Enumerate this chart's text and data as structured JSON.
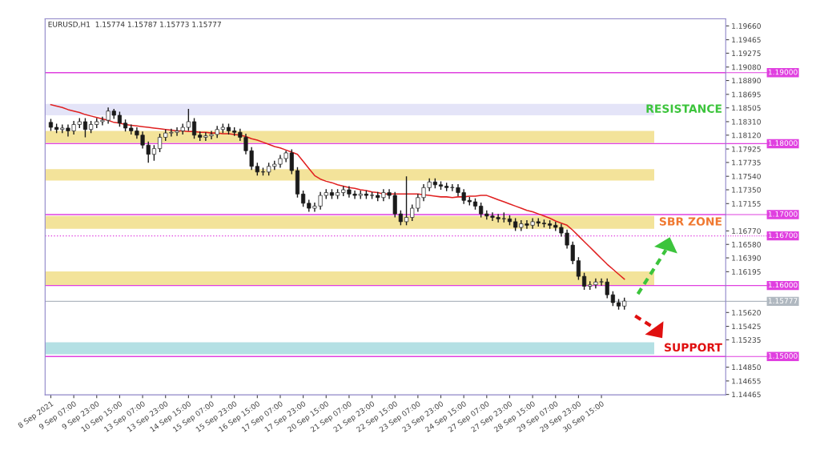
{
  "chart_data": {
    "type": "candlestick",
    "title": "EURUSD,H1  1.15774 1.15787 1.15773 1.15777",
    "categories": [
      "8 Sep 2021",
      null,
      null,
      null,
      "9 Sep 07:00",
      null,
      null,
      null,
      "9 Sep 23:00",
      null,
      null,
      null,
      "10 Sep 15:00",
      null,
      null,
      null,
      "13 Sep 07:00",
      null,
      null,
      null,
      "13 Sep 23:00",
      null,
      null,
      null,
      "14 Sep 15:00",
      null,
      null,
      null,
      "15 Sep 07:00",
      null,
      null,
      null,
      "15 Sep 23:00",
      null,
      null,
      null,
      "16 Sep 15:00",
      null,
      null,
      null,
      "17 Sep 07:00",
      null,
      null,
      null,
      "17 Sep 23:00",
      null,
      null,
      null,
      "20 Sep 15:00",
      null,
      null,
      null,
      "21 Sep 07:00",
      null,
      null,
      null,
      "21 Sep 23:00",
      null,
      null,
      null,
      "22 Sep 15:00",
      null,
      null,
      null,
      "23 Sep 07:00",
      null,
      null,
      null,
      "23 Sep 23:00",
      null,
      null,
      null,
      "24 Sep 15:00",
      null,
      null,
      null,
      "27 Sep 07:00",
      null,
      null,
      null,
      "27 Sep 23:00",
      null,
      null,
      null,
      "28 Sep 15:00",
      null,
      null,
      null,
      "29 Sep 07:00",
      null,
      null,
      null,
      "29 Sep 23:00",
      null,
      null,
      null,
      "30 Sep 15:00",
      null,
      null,
      null,
      null
    ],
    "ohlc": [
      [
        1.183,
        1.1835,
        1.1818,
        1.1823
      ],
      [
        1.1823,
        1.1828,
        1.1815,
        1.182
      ],
      [
        1.182,
        1.1827,
        1.1815,
        1.1822
      ],
      [
        1.1822,
        1.1827,
        1.181,
        1.1818
      ],
      [
        1.1818,
        1.1832,
        1.1813,
        1.1827
      ],
      [
        1.1827,
        1.1836,
        1.1822,
        1.1831
      ],
      [
        1.1831,
        1.1836,
        1.1809,
        1.182
      ],
      [
        1.182,
        1.1832,
        1.1815,
        1.1827
      ],
      [
        1.1827,
        1.1836,
        1.1822,
        1.1831
      ],
      [
        1.1831,
        1.1838,
        1.1826,
        1.1833
      ],
      [
        1.1833,
        1.1851,
        1.1828,
        1.1846
      ],
      [
        1.1846,
        1.1849,
        1.1835,
        1.184
      ],
      [
        1.184,
        1.1845,
        1.1824,
        1.1829
      ],
      [
        1.1829,
        1.1834,
        1.1817,
        1.1822
      ],
      [
        1.1822,
        1.1827,
        1.1813,
        1.1818
      ],
      [
        1.1818,
        1.1823,
        1.1807,
        1.1812
      ],
      [
        1.1812,
        1.1817,
        1.1793,
        1.1798
      ],
      [
        1.1798,
        1.1803,
        1.1773,
        1.1785
      ],
      [
        1.1785,
        1.1798,
        1.1776,
        1.1793
      ],
      [
        1.1793,
        1.1814,
        1.1788,
        1.1809
      ],
      [
        1.1809,
        1.182,
        1.1804,
        1.1815
      ],
      [
        1.1815,
        1.1821,
        1.181,
        1.1816
      ],
      [
        1.1816,
        1.1823,
        1.1811,
        1.1818
      ],
      [
        1.1818,
        1.1828,
        1.1813,
        1.1823
      ],
      [
        1.1823,
        1.1849,
        1.1818,
        1.1831
      ],
      [
        1.1831,
        1.1836,
        1.1807,
        1.1812
      ],
      [
        1.1812,
        1.1817,
        1.1804,
        1.1809
      ],
      [
        1.1809,
        1.1816,
        1.1804,
        1.1811
      ],
      [
        1.1811,
        1.1818,
        1.1806,
        1.1813
      ],
      [
        1.1813,
        1.1825,
        1.1808,
        1.182
      ],
      [
        1.182,
        1.1828,
        1.1815,
        1.1823
      ],
      [
        1.1823,
        1.1828,
        1.1813,
        1.1818
      ],
      [
        1.1818,
        1.1823,
        1.1811,
        1.1816
      ],
      [
        1.1816,
        1.1821,
        1.1804,
        1.1809
      ],
      [
        1.1809,
        1.1814,
        1.1785,
        1.179
      ],
      [
        1.179,
        1.1795,
        1.1763,
        1.1768
      ],
      [
        1.1768,
        1.1773,
        1.1755,
        1.176
      ],
      [
        1.176,
        1.1766,
        1.1755,
        1.176
      ],
      [
        1.176,
        1.1773,
        1.1755,
        1.1768
      ],
      [
        1.1768,
        1.1776,
        1.1763,
        1.1771
      ],
      [
        1.1771,
        1.1784,
        1.1766,
        1.1779
      ],
      [
        1.1779,
        1.179,
        1.1774,
        1.1787
      ],
      [
        1.1787,
        1.1792,
        1.1757,
        1.1762
      ],
      [
        1.1762,
        1.1767,
        1.1724,
        1.1729
      ],
      [
        1.1729,
        1.1734,
        1.1711,
        1.1716
      ],
      [
        1.1716,
        1.1721,
        1.1704,
        1.1709
      ],
      [
        1.1709,
        1.1717,
        1.1704,
        1.1712
      ],
      [
        1.1712,
        1.1732,
        1.1707,
        1.1727
      ],
      [
        1.1727,
        1.1736,
        1.1722,
        1.1731
      ],
      [
        1.1731,
        1.1736,
        1.1722,
        1.1727
      ],
      [
        1.1727,
        1.1736,
        1.1722,
        1.1731
      ],
      [
        1.1731,
        1.174,
        1.1726,
        1.1735
      ],
      [
        1.1735,
        1.174,
        1.1724,
        1.1729
      ],
      [
        1.1729,
        1.1734,
        1.1722,
        1.1727
      ],
      [
        1.1727,
        1.1734,
        1.1722,
        1.1729
      ],
      [
        1.1729,
        1.1734,
        1.1722,
        1.1727
      ],
      [
        1.1727,
        1.1732,
        1.1722,
        1.1727
      ],
      [
        1.1727,
        1.1732,
        1.1719,
        1.1724
      ],
      [
        1.1724,
        1.1736,
        1.1719,
        1.1731
      ],
      [
        1.1731,
        1.1736,
        1.1722,
        1.1727
      ],
      [
        1.1727,
        1.1732,
        1.1696,
        1.1701
      ],
      [
        1.1701,
        1.1706,
        1.1685,
        1.169
      ],
      [
        1.169,
        1.1754,
        1.1685,
        1.1696
      ],
      [
        1.1696,
        1.1714,
        1.1691,
        1.1709
      ],
      [
        1.1709,
        1.1729,
        1.1704,
        1.1724
      ],
      [
        1.1724,
        1.1743,
        1.1719,
        1.1738
      ],
      [
        1.1738,
        1.1751,
        1.1733,
        1.1746
      ],
      [
        1.1746,
        1.1751,
        1.1737,
        1.1742
      ],
      [
        1.1742,
        1.1747,
        1.1735,
        1.174
      ],
      [
        1.174,
        1.1745,
        1.1733,
        1.1738
      ],
      [
        1.1738,
        1.1743,
        1.1733,
        1.1738
      ],
      [
        1.1738,
        1.1743,
        1.1726,
        1.1731
      ],
      [
        1.1731,
        1.1736,
        1.1715,
        1.172
      ],
      [
        1.172,
        1.1725,
        1.1713,
        1.1718
      ],
      [
        1.1718,
        1.1723,
        1.1707,
        1.1712
      ],
      [
        1.1712,
        1.1717,
        1.1696,
        1.1701
      ],
      [
        1.1701,
        1.1706,
        1.1693,
        1.1698
      ],
      [
        1.1698,
        1.1703,
        1.1691,
        1.1696
      ],
      [
        1.1696,
        1.1701,
        1.1689,
        1.1694
      ],
      [
        1.1694,
        1.1703,
        1.1689,
        1.1694
      ],
      [
        1.1694,
        1.1699,
        1.1685,
        1.169
      ],
      [
        1.169,
        1.1695,
        1.1677,
        1.1682
      ],
      [
        1.1682,
        1.1692,
        1.1677,
        1.1687
      ],
      [
        1.1687,
        1.1692,
        1.168,
        1.1685
      ],
      [
        1.1685,
        1.1695,
        1.168,
        1.169
      ],
      [
        1.169,
        1.1695,
        1.1683,
        1.1688
      ],
      [
        1.1688,
        1.1693,
        1.1682,
        1.1687
      ],
      [
        1.1687,
        1.1692,
        1.168,
        1.1685
      ],
      [
        1.1685,
        1.169,
        1.1677,
        1.1682
      ],
      [
        1.1682,
        1.1687,
        1.1669,
        1.1674
      ],
      [
        1.1674,
        1.1679,
        1.1652,
        1.1657
      ],
      [
        1.1657,
        1.1662,
        1.163,
        1.1635
      ],
      [
        1.1635,
        1.164,
        1.1608,
        1.1613
      ],
      [
        1.1613,
        1.1618,
        1.1594,
        1.1599
      ],
      [
        1.1599,
        1.1606,
        1.1594,
        1.1601
      ],
      [
        1.1601,
        1.161,
        1.1596,
        1.1605
      ],
      [
        1.1605,
        1.161,
        1.16,
        1.1605
      ],
      [
        1.1605,
        1.161,
        1.1582,
        1.1587
      ],
      [
        1.1587,
        1.1592,
        1.1571,
        1.1576
      ],
      [
        1.1576,
        1.1581,
        1.1566,
        1.1571
      ],
      [
        1.1571,
        1.1583,
        1.1566,
        1.1578
      ]
    ],
    "series": [
      {
        "type": "line",
        "color": "#e02020",
        "values": [
          1.1855,
          1.1853,
          1.1851,
          1.1848,
          1.1846,
          1.1844,
          1.1841,
          1.1839,
          1.1837,
          1.1835,
          1.1833,
          1.183,
          1.1829,
          1.1827,
          1.1826,
          1.1825,
          1.1824,
          1.1823,
          1.1822,
          1.1821,
          1.182,
          1.1819,
          1.1818,
          1.1818,
          1.1817,
          1.1817,
          1.1816,
          1.1816,
          1.1815,
          1.1815,
          1.1814,
          1.1814,
          1.1813,
          1.1812,
          1.181,
          1.1807,
          1.1805,
          1.1802,
          1.1799,
          1.1796,
          1.1794,
          1.1791,
          1.1788,
          1.1785,
          1.1775,
          1.1765,
          1.1755,
          1.175,
          1.1747,
          1.1745,
          1.1742,
          1.174,
          1.1738,
          1.1737,
          1.1735,
          1.1734,
          1.1732,
          1.1731,
          1.1729,
          1.1729,
          1.1729,
          1.1729,
          1.1729,
          1.1729,
          1.1729,
          1.1728,
          1.1727,
          1.1726,
          1.1725,
          1.1725,
          1.1724,
          1.1725,
          1.1725,
          1.1726,
          1.1726,
          1.1727,
          1.1727,
          1.1724,
          1.1721,
          1.1718,
          1.1715,
          1.1712,
          1.1709,
          1.1706,
          1.1704,
          1.1701,
          1.1698,
          1.1695,
          1.1691,
          1.1688,
          1.1685,
          1.1678,
          1.167,
          1.1662,
          1.1654,
          1.1646,
          1.1638,
          1.163,
          1.1623,
          1.1616,
          1.1609
        ]
      }
    ],
    "ylim": [
      1.1446,
      1.1976
    ],
    "yticks": [
      {
        "value": 1.1966,
        "label": "1.19660"
      },
      {
        "value": 1.19465,
        "label": "1.19465"
      },
      {
        "value": 1.19275,
        "label": "1.19275"
      },
      {
        "value": 1.1908,
        "label": "1.19080"
      },
      {
        "value": 1.1889,
        "label": "1.18890"
      },
      {
        "value": 1.18695,
        "label": "1.18695"
      },
      {
        "value": 1.18505,
        "label": "1.18505"
      },
      {
        "value": 1.1831,
        "label": "1.18310"
      },
      {
        "value": 1.1812,
        "label": "1.18120"
      },
      {
        "value": 1.17925,
        "label": "1.17925"
      },
      {
        "value": 1.17735,
        "label": "1.17735"
      },
      {
        "value": 1.1754,
        "label": "1.17540"
      },
      {
        "value": 1.1735,
        "label": "1.17350"
      },
      {
        "value": 1.17155,
        "label": "1.17155"
      },
      {
        "value": 1.1677,
        "label": "1.16770"
      },
      {
        "value": 1.1658,
        "label": "1.16580"
      },
      {
        "value": 1.1639,
        "label": "1.16390"
      },
      {
        "value": 1.16195,
        "label": "1.16195"
      },
      {
        "value": 1.1562,
        "label": "1.15620"
      },
      {
        "value": 1.15425,
        "label": "1.15425"
      },
      {
        "value": 1.15235,
        "label": "1.15235"
      },
      {
        "value": 1.1485,
        "label": "1.14850"
      },
      {
        "value": 1.14655,
        "label": "1.14655"
      },
      {
        "value": 1.14465,
        "label": "1.14465"
      }
    ],
    "bands": [
      {
        "axis": "y",
        "from": 1.184,
        "to": 1.1856,
        "label": "RESISTANCE",
        "color": "#e4e4f8"
      },
      {
        "axis": "y",
        "from": 1.1801,
        "to": 1.1818,
        "color": "#f3e39a"
      },
      {
        "axis": "y",
        "from": 1.1748,
        "to": 1.1764,
        "color": "#f3e39a"
      },
      {
        "axis": "y",
        "from": 1.168,
        "to": 1.1698,
        "label": "SBR ZONE",
        "color": "#f3e39a"
      },
      {
        "axis": "y",
        "from": 1.16,
        "to": 1.162,
        "color": "#f3e39a"
      },
      {
        "axis": "y",
        "from": 1.1503,
        "to": 1.152,
        "label": "SUPPORT",
        "color": "#b4e0e4"
      }
    ],
    "ref_lines": [
      {
        "axis": "y",
        "value": 1.19,
        "label": "1.19000",
        "color": "#e040e0",
        "line_style": "solid"
      },
      {
        "axis": "y",
        "value": 1.18,
        "label": "1.18000",
        "color": "#e040e0",
        "line_style": "solid"
      },
      {
        "axis": "y",
        "value": 1.17,
        "label": "1.17000",
        "color": "#e040e0",
        "line_style": "solid"
      },
      {
        "axis": "y",
        "value": 1.167,
        "label": "1.16700",
        "color": "#e040e0",
        "line_style": "dotted"
      },
      {
        "axis": "y",
        "value": 1.16,
        "label": "1.16000",
        "color": "#e040e0",
        "line_style": "solid"
      },
      {
        "axis": "y",
        "value": 1.15777,
        "label": "1.15777",
        "color": "#b0b8c0",
        "line_style": "solid"
      },
      {
        "axis": "y",
        "value": 1.15,
        "label": "1.15000",
        "color": "#e040e0",
        "line_style": "solid"
      }
    ],
    "grid": false
  }
}
